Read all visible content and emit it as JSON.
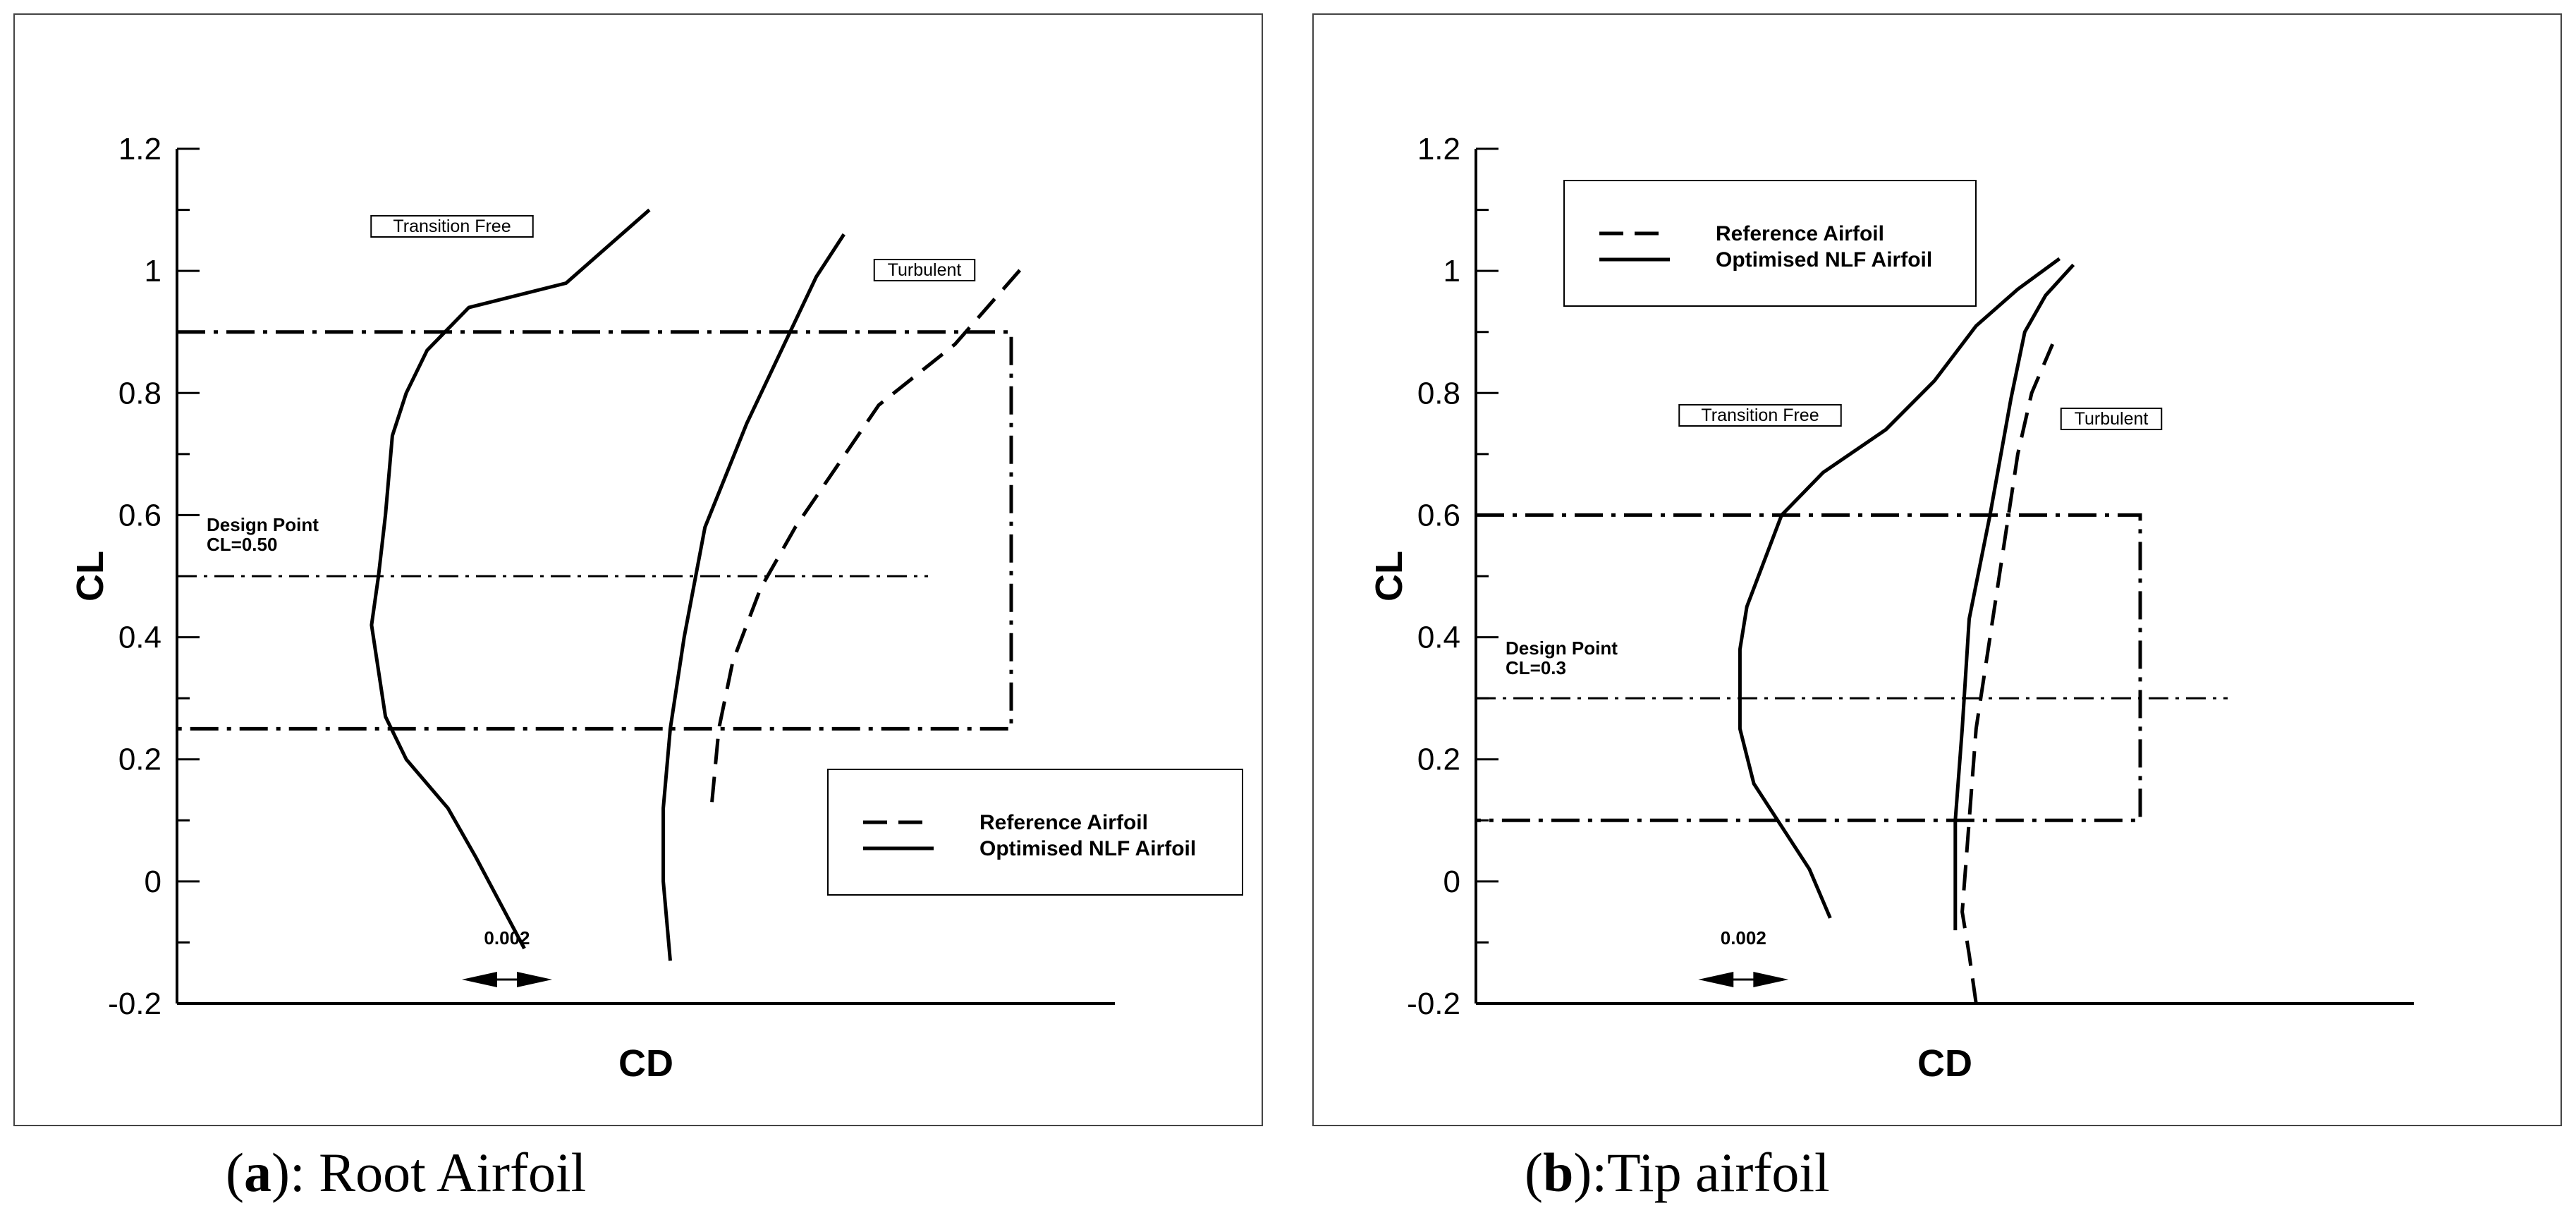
{
  "figure": {
    "panels": [
      {
        "caption_letter": "a",
        "caption_text": "): Root Airfoil",
        "chart_data": {
          "type": "line",
          "xlabel": "CD",
          "ylabel": "CL",
          "ylim": [
            -0.2,
            1.2
          ],
          "yticks": [
            "-0.2",
            "0",
            "0.2",
            "0.4",
            "0.6",
            "0.8",
            "1",
            "1.2"
          ],
          "x_units": "CD increments of 0.002 shown by scale arrow",
          "scale_bar_label": "0.002",
          "design_label_1": "Design Point",
          "design_label_2": "CL=0.50",
          "design_cl": 0.5,
          "band": [
            0.25,
            0.9
          ],
          "label_transition": "Transition Free",
          "label_turbulent": "Turbulent",
          "legend": [
            "Reference Airfoil",
            "Optimised NLF Airfoil"
          ],
          "series": [
            {
              "name": "Optimised NLF Airfoil",
              "regime": "Transition Free",
              "style": "solid",
              "points": [
                [
                  0.006,
                  -0.11
                ],
                [
                  0.0053,
                  0.04
                ],
                [
                  0.0049,
                  0.12
                ],
                [
                  0.0043,
                  0.2
                ],
                [
                  0.004,
                  0.27
                ],
                [
                  0.0038,
                  0.42
                ],
                [
                  0.0039,
                  0.5
                ],
                [
                  0.004,
                  0.6
                ],
                [
                  0.0041,
                  0.73
                ],
                [
                  0.0043,
                  0.8
                ],
                [
                  0.0046,
                  0.87
                ],
                [
                  0.0052,
                  0.94
                ],
                [
                  0.0066,
                  0.98
                ],
                [
                  0.0072,
                  1.04
                ],
                [
                  0.0078,
                  1.1
                ]
              ]
            },
            {
              "name": "Optimised NLF Airfoil",
              "regime": "Turbulent",
              "style": "solid",
              "points": [
                [
                  0.0081,
                  -0.13
                ],
                [
                  0.008,
                  0.0
                ],
                [
                  0.008,
                  0.12
                ],
                [
                  0.0081,
                  0.25
                ],
                [
                  0.0083,
                  0.4
                ],
                [
                  0.0086,
                  0.58
                ],
                [
                  0.0092,
                  0.75
                ],
                [
                  0.0097,
                  0.87
                ],
                [
                  0.0102,
                  0.99
                ],
                [
                  0.0106,
                  1.06
                ]
              ]
            },
            {
              "name": "Reference Airfoil",
              "regime": "Turbulent",
              "style": "dashed",
              "points": [
                [
                  0.0087,
                  0.13
                ],
                [
                  0.0088,
                  0.25
                ],
                [
                  0.009,
                  0.36
                ],
                [
                  0.0094,
                  0.48
                ],
                [
                  0.0099,
                  0.58
                ],
                [
                  0.0105,
                  0.68
                ],
                [
                  0.0111,
                  0.78
                ],
                [
                  0.0122,
                  0.88
                ],
                [
                  0.0132,
                  1.01
                ]
              ]
            }
          ],
          "scale_arrow_x": [
            0.0051,
            0.0064
          ]
        }
      },
      {
        "caption_letter": "b",
        "caption_text": "):Tip airfoil",
        "chart_data": {
          "type": "line",
          "xlabel": "CD",
          "ylabel": "CL",
          "ylim": [
            -0.2,
            1.2
          ],
          "yticks": [
            "-0.2",
            "0",
            "0.2",
            "0.4",
            "0.6",
            "0.8",
            "1",
            "1.2"
          ],
          "scale_bar_label": "0.002",
          "design_label_1": "Design Point",
          "design_label_2": "CL=0.3",
          "design_cl": 0.3,
          "band": [
            0.1,
            0.6
          ],
          "label_transition": "Transition Free",
          "label_turbulent": "Turbulent",
          "legend": [
            "Reference Airfoil",
            "Optimised NLF Airfoil"
          ],
          "series": [
            {
              "name": "Optimised NLF Airfoil",
              "regime": "Transition Free",
              "style": "solid",
              "points": [
                [
                  0.0061,
                  -0.06
                ],
                [
                  0.0058,
                  0.02
                ],
                [
                  0.005,
                  0.16
                ],
                [
                  0.0048,
                  0.25
                ],
                [
                  0.0048,
                  0.38
                ],
                [
                  0.0049,
                  0.45
                ],
                [
                  0.0054,
                  0.6
                ],
                [
                  0.006,
                  0.67
                ],
                [
                  0.0069,
                  0.74
                ],
                [
                  0.0076,
                  0.82
                ],
                [
                  0.0082,
                  0.91
                ],
                [
                  0.0088,
                  0.97
                ],
                [
                  0.0094,
                  1.02
                ]
              ]
            },
            {
              "name": "Optimised NLF Airfoil",
              "regime": "Turbulent",
              "style": "solid",
              "points": [
                [
                  0.0079,
                  -0.08
                ],
                [
                  0.0079,
                  0.1
                ],
                [
                  0.008,
                  0.25
                ],
                [
                  0.0081,
                  0.43
                ],
                [
                  0.0084,
                  0.6
                ],
                [
                  0.0087,
                  0.79
                ],
                [
                  0.0089,
                  0.9
                ],
                [
                  0.0092,
                  0.96
                ],
                [
                  0.0096,
                  1.01
                ]
              ]
            },
            {
              "name": "Reference Airfoil",
              "regime": "Turbulent",
              "style": "dashed",
              "points": [
                [
                  0.0082,
                  -0.2
                ],
                [
                  0.0081,
                  -0.12
                ],
                [
                  0.008,
                  -0.05
                ],
                [
                  0.0081,
                  0.1
                ],
                [
                  0.0082,
                  0.25
                ],
                [
                  0.0084,
                  0.4
                ],
                [
                  0.0086,
                  0.55
                ],
                [
                  0.0088,
                  0.7
                ],
                [
                  0.009,
                  0.8
                ],
                [
                  0.0093,
                  0.88
                ]
              ]
            }
          ],
          "scale_arrow_x": [
            0.0042,
            0.0055
          ]
        }
      }
    ]
  }
}
